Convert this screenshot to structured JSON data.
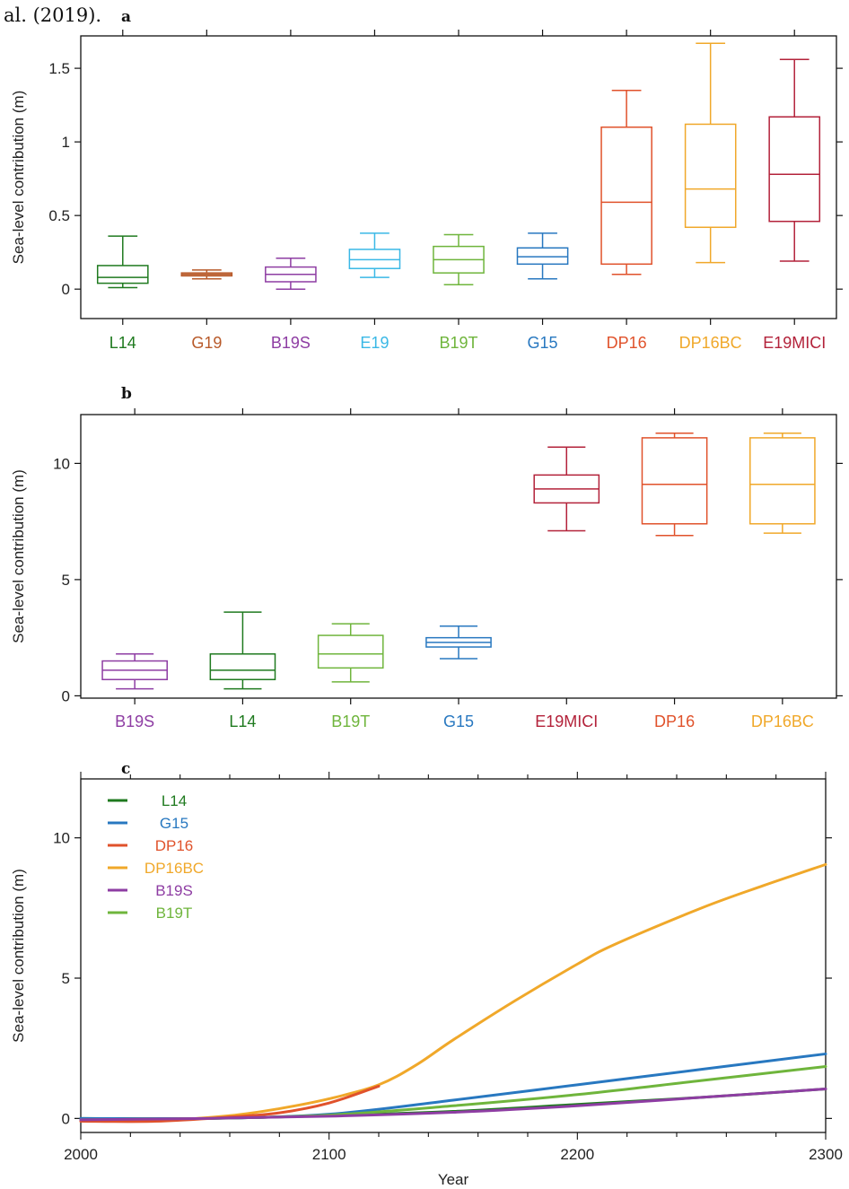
{
  "caption": "al. (2019).",
  "colors": {
    "L14": "#1f7a1f",
    "G19": "#b85a2a",
    "B19S": "#8e3da3",
    "E19": "#3ab8e6",
    "B19T": "#6fb53c",
    "G15": "#2878c0",
    "DP16": "#e0522b",
    "DP16BC": "#f0a82a",
    "E19MICI": "#b3223a"
  },
  "chart_data": [
    {
      "panel": "a",
      "type": "box",
      "ylabel": "Sea-level contribution (m)",
      "ylim": [
        -0.2,
        1.72
      ],
      "yticks": [
        0,
        0.5,
        1,
        1.5
      ],
      "ytick_labels": [
        "0",
        "0.5",
        "1",
        "1.5"
      ],
      "boxes": [
        {
          "name": "L14",
          "whislo": 0.01,
          "q1": 0.04,
          "med": 0.08,
          "q3": 0.16,
          "whishi": 0.36
        },
        {
          "name": "G19",
          "whislo": 0.07,
          "q1": 0.09,
          "med": 0.1,
          "q3": 0.11,
          "whishi": 0.13
        },
        {
          "name": "B19S",
          "whislo": 0.0,
          "q1": 0.05,
          "med": 0.1,
          "q3": 0.15,
          "whishi": 0.21
        },
        {
          "name": "E19",
          "whislo": 0.08,
          "q1": 0.14,
          "med": 0.2,
          "q3": 0.27,
          "whishi": 0.38
        },
        {
          "name": "B19T",
          "whislo": 0.03,
          "q1": 0.11,
          "med": 0.2,
          "q3": 0.29,
          "whishi": 0.37
        },
        {
          "name": "G15",
          "whislo": 0.07,
          "q1": 0.17,
          "med": 0.22,
          "q3": 0.28,
          "whishi": 0.38
        },
        {
          "name": "DP16",
          "whislo": 0.1,
          "q1": 0.17,
          "med": 0.59,
          "q3": 1.1,
          "whishi": 1.35
        },
        {
          "name": "DP16BC",
          "whislo": 0.18,
          "q1": 0.42,
          "med": 0.68,
          "q3": 1.12,
          "whishi": 1.67
        },
        {
          "name": "E19MICI",
          "whislo": 0.19,
          "q1": 0.46,
          "med": 0.78,
          "q3": 1.17,
          "whishi": 1.56
        }
      ]
    },
    {
      "panel": "b",
      "type": "box",
      "ylabel": "Sea-level contribution (m)",
      "ylim": [
        -0.1,
        12.1
      ],
      "yticks": [
        0,
        5,
        10
      ],
      "ytick_labels": [
        "0",
        "5",
        "10"
      ],
      "boxes": [
        {
          "name": "B19S",
          "whislo": 0.3,
          "q1": 0.7,
          "med": 1.1,
          "q3": 1.5,
          "whishi": 1.8
        },
        {
          "name": "L14",
          "whislo": 0.3,
          "q1": 0.7,
          "med": 1.1,
          "q3": 1.8,
          "whishi": 3.6
        },
        {
          "name": "B19T",
          "whislo": 0.6,
          "q1": 1.2,
          "med": 1.8,
          "q3": 2.6,
          "whishi": 3.1
        },
        {
          "name": "G15",
          "whislo": 1.6,
          "q1": 2.1,
          "med": 2.3,
          "q3": 2.5,
          "whishi": 3.0
        },
        {
          "name": "E19MICI",
          "whislo": 7.1,
          "q1": 8.3,
          "med": 8.9,
          "q3": 9.5,
          "whishi": 10.7
        },
        {
          "name": "DP16",
          "whislo": 6.9,
          "q1": 7.4,
          "med": 9.1,
          "q3": 11.1,
          "whishi": 11.3
        },
        {
          "name": "DP16BC",
          "whislo": 7.0,
          "q1": 7.4,
          "med": 9.1,
          "q3": 11.1,
          "whishi": 11.3
        }
      ]
    },
    {
      "panel": "c",
      "type": "line",
      "xlabel": "Year",
      "ylabel": "Sea-level contribution (m)",
      "xlim": [
        2000,
        2300
      ],
      "ylim": [
        -0.5,
        12.1
      ],
      "xticks": [
        2000,
        2100,
        2200,
        2300
      ],
      "xtick_labels": [
        "2000",
        "2100",
        "2200",
        "2300"
      ],
      "yticks": [
        0,
        5,
        10
      ],
      "ytick_labels": [
        "0",
        "5",
        "10"
      ],
      "legend": "top-left",
      "series": [
        {
          "name": "L14",
          "x": [
            2000,
            2050,
            2100,
            2150,
            2200,
            2250,
            2300
          ],
          "y": [
            0.0,
            0.0,
            0.1,
            0.25,
            0.5,
            0.75,
            1.05
          ]
        },
        {
          "name": "G15",
          "x": [
            2000,
            2050,
            2100,
            2150,
            2200,
            2250,
            2300
          ],
          "y": [
            0.0,
            0.0,
            0.15,
            0.65,
            1.2,
            1.75,
            2.3
          ]
        },
        {
          "name": "DP16",
          "x": [
            2000,
            2030,
            2060,
            2080,
            2100,
            2120
          ],
          "y": [
            -0.1,
            -0.1,
            0.05,
            0.2,
            0.55,
            1.15
          ]
        },
        {
          "name": "DP16BC",
          "x": [
            2000,
            2030,
            2060,
            2080,
            2100,
            2120,
            2135,
            2150,
            2175,
            2200,
            2215,
            2250,
            2275,
            2300
          ],
          "y": [
            -0.1,
            -0.08,
            0.1,
            0.35,
            0.7,
            1.2,
            1.9,
            2.8,
            4.2,
            5.5,
            6.2,
            7.5,
            8.3,
            9.05
          ]
        },
        {
          "name": "B19S",
          "x": [
            2000,
            2050,
            2100,
            2150,
            2200,
            2250,
            2300
          ],
          "y": [
            -0.05,
            0.0,
            0.08,
            0.22,
            0.45,
            0.75,
            1.05
          ]
        },
        {
          "name": "B19T",
          "x": [
            2000,
            2050,
            2100,
            2150,
            2200,
            2250,
            2300
          ],
          "y": [
            -0.05,
            0.0,
            0.12,
            0.45,
            0.85,
            1.35,
            1.85
          ]
        }
      ]
    }
  ]
}
